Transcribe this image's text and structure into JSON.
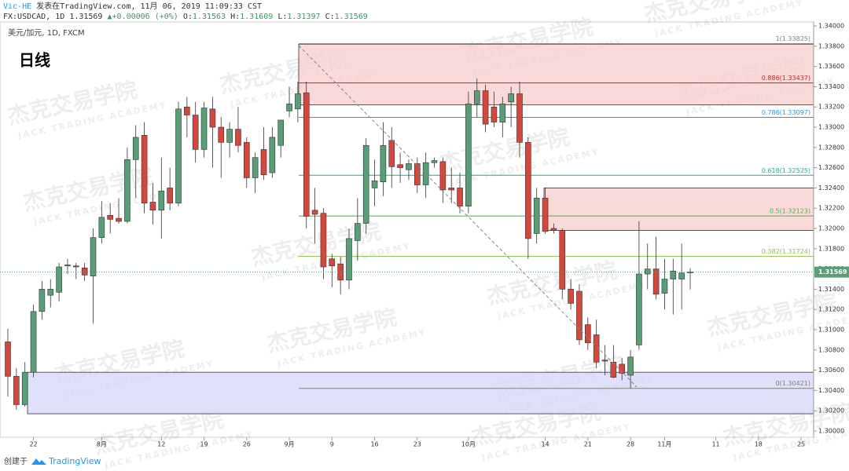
{
  "header": {
    "author": "Vic-HE",
    "published": "发表在TradingView.com, 11月 06, 2019 11:09:33 CST",
    "symbol": "FX:USDCAD, 1D",
    "arrow": "▲",
    "change": "+0.00006 (+0%)",
    "o": "O:",
    "h": "H:",
    "l": "L:",
    "c": "C:"
  },
  "chart_data": {
    "type": "candlestick",
    "instrument": "美元/加元, 1D, FXCM",
    "title": "日线",
    "categories": [
      null,
      null,
      null,
      "22",
      null,
      null,
      null,
      null,
      null,
      null,
      null,
      "8月",
      null,
      null,
      null,
      null,
      null,
      null,
      "12",
      null,
      null,
      null,
      null,
      "19",
      null,
      null,
      null,
      null,
      "26",
      null,
      null,
      null,
      null,
      "9月",
      null,
      null,
      null,
      null,
      "9",
      null,
      null,
      null,
      null,
      "16",
      null,
      null,
      null,
      null,
      "23",
      null,
      null,
      null,
      null,
      null,
      "10月",
      null,
      null,
      null,
      null,
      null,
      null,
      null,
      null,
      "14",
      null,
      null,
      null,
      null,
      "21",
      null,
      null,
      null,
      null,
      "28",
      null,
      null,
      null,
      "11月",
      null,
      null,
      null,
      null,
      null,
      "11",
      null,
      null,
      null,
      null,
      "18",
      null,
      null,
      null,
      null,
      "25"
    ],
    "open": [
      1.3088,
      1.3054,
      1.3026,
      1.3058,
      1.3118,
      1.3134,
      1.3137,
      1.3163,
      1.3163,
      1.3161,
      1.3153,
      1.3191,
      1.3213,
      1.321,
      1.3207,
      1.3268,
      1.3292,
      1.3226,
      1.3218,
      1.324,
      1.3225,
      1.332,
      1.3312,
      1.3278,
      1.3318,
      1.33,
      1.3285,
      1.3298,
      1.3285,
      1.325,
      1.3278,
      1.3255,
      1.3282,
      1.3316,
      1.3318,
      1.3334,
      1.3218,
      1.3215,
      1.317,
      1.3165,
      1.3149,
      1.3188,
      1.3205,
      1.324,
      1.3246,
      1.3287,
      1.3263,
      1.3258,
      1.3264,
      1.3243,
      1.3265,
      1.3266,
      1.324,
      1.324,
      1.3222,
      1.3323,
      1.3336,
      1.332,
      1.3305,
      1.3325,
      1.3333,
      1.3285,
      1.3195,
      1.323,
      1.32,
      1.3198,
      1.314,
      1.3138,
      1.3105,
      1.3095,
      1.307,
      1.3068,
      1.3066,
      1.3055,
      1.3085,
      1.3155,
      1.316,
      1.3136,
      1.315,
      1.315,
      1.31563,
      null,
      null,
      null,
      null,
      null,
      null,
      null,
      null,
      null,
      null,
      null,
      null,
      null
    ],
    "high": [
      1.3101,
      1.3062,
      1.3068,
      1.3125,
      1.3148,
      1.315,
      1.3166,
      1.317,
      1.3166,
      1.3166,
      1.32,
      1.3227,
      1.3225,
      1.323,
      1.328,
      1.3302,
      1.3305,
      1.3245,
      1.327,
      1.326,
      1.3325,
      1.333,
      1.3325,
      1.3325,
      1.333,
      1.331,
      1.3305,
      1.332,
      1.329,
      1.3275,
      1.33,
      1.33,
      1.3305,
      1.334,
      1.3345,
      1.3345,
      1.324,
      1.322,
      1.3175,
      1.3172,
      1.32,
      1.323,
      1.3289,
      1.3268,
      1.3305,
      1.33,
      1.3275,
      1.3268,
      1.327,
      1.3275,
      1.327,
      1.327,
      1.326,
      1.3255,
      1.3335,
      1.3348,
      1.3342,
      1.3335,
      1.333,
      1.334,
      1.3345,
      1.329,
      1.324,
      1.324,
      1.3205,
      1.32,
      1.315,
      1.3145,
      1.3112,
      1.311,
      1.3085,
      1.3085,
      1.3072,
      1.308,
      1.3207,
      1.3185,
      1.3192,
      1.317,
      1.317,
      1.3185,
      1.31609,
      null,
      null,
      null,
      null,
      null,
      null,
      null,
      null,
      null,
      null,
      null,
      null,
      null
    ],
    "low": [
      1.3034,
      1.3021,
      1.3024,
      1.3053,
      1.311,
      1.3122,
      1.3128,
      1.3155,
      1.315,
      1.3148,
      1.3106,
      1.3185,
      1.3195,
      1.3205,
      1.3205,
      1.323,
      1.3215,
      1.3204,
      1.319,
      1.3218,
      1.3222,
      1.329,
      1.3265,
      1.327,
      1.326,
      1.325,
      1.327,
      1.3275,
      1.324,
      1.3235,
      1.3248,
      1.325,
      1.327,
      1.331,
      1.3305,
      1.32,
      1.3185,
      1.315,
      1.3142,
      1.3135,
      1.314,
      1.3168,
      1.3195,
      1.3222,
      1.3232,
      1.324,
      1.3245,
      1.3248,
      1.3235,
      1.323,
      1.326,
      1.3225,
      1.3225,
      1.3215,
      1.3215,
      1.331,
      1.3295,
      1.33,
      1.329,
      1.33,
      1.327,
      1.317,
      1.3185,
      1.3195,
      1.3195,
      1.313,
      1.312,
      1.3085,
      1.308,
      1.3062,
      1.3055,
      1.3052,
      1.305,
      1.3042,
      1.308,
      1.314,
      1.313,
      1.312,
      1.3115,
      1.312,
      1.31397,
      null,
      null,
      null,
      null,
      null,
      null,
      null,
      null,
      null,
      null,
      null,
      null,
      null
    ],
    "close": [
      1.3054,
      1.3026,
      1.3058,
      1.3118,
      1.314,
      1.314,
      1.3162,
      1.3164,
      1.3162,
      1.3154,
      1.3191,
      1.3211,
      1.3209,
      1.3207,
      1.3268,
      1.329,
      1.3225,
      1.3218,
      1.3237,
      1.3225,
      1.3318,
      1.3312,
      1.3278,
      1.3319,
      1.33,
      1.3285,
      1.3298,
      1.3282,
      1.325,
      1.327,
      1.3253,
      1.329,
      1.3307,
      1.3323,
      1.3333,
      1.3212,
      1.3214,
      1.3162,
      1.3163,
      1.3149,
      1.319,
      1.3205,
      1.3282,
      1.3247,
      1.3282,
      1.3261,
      1.326,
      1.3264,
      1.3243,
      1.3265,
      1.3267,
      1.3238,
      1.3238,
      1.3222,
      1.3323,
      1.3336,
      1.3303,
      1.3305,
      1.3323,
      1.3333,
      1.3285,
      1.319,
      1.323,
      1.3197,
      1.3198,
      1.314,
      1.3126,
      1.309,
      1.3087,
      1.3068,
      1.3069,
      1.3053,
      1.3057,
      1.3073,
      1.3155,
      1.316,
      1.3135,
      1.315,
      1.3158,
      1.3156,
      1.31569,
      null,
      null,
      null,
      null,
      null,
      null,
      null,
      null,
      null,
      null,
      null,
      null,
      null
    ],
    "up_color": "#5a9e78",
    "down_color": "#d2483f",
    "ylim": [
      1.29938,
      1.34039
    ],
    "yticks": [
      {
        "value": 1.3,
        "label": "1.30000"
      },
      {
        "value": 1.302,
        "label": "1.30200"
      },
      {
        "value": 1.304,
        "label": "1.30400"
      },
      {
        "value": 1.306,
        "label": "1.30600"
      },
      {
        "value": 1.308,
        "label": "1.30800"
      },
      {
        "value": 1.31,
        "label": "1.31000"
      },
      {
        "value": 1.312,
        "label": "1.31200"
      },
      {
        "value": 1.314,
        "label": "1.31400"
      },
      {
        "value": 1.316,
        "label": "1.31600"
      },
      {
        "value": 1.318,
        "label": "1.31800"
      },
      {
        "value": 1.32,
        "label": "1.32000"
      },
      {
        "value": 1.322,
        "label": "1.32200"
      },
      {
        "value": 1.324,
        "label": "1.32400"
      },
      {
        "value": 1.326,
        "label": "1.32600"
      },
      {
        "value": 1.328,
        "label": "1.32800"
      },
      {
        "value": 1.33,
        "label": "1.33000"
      },
      {
        "value": 1.332,
        "label": "1.33200"
      },
      {
        "value": 1.334,
        "label": "1.33400"
      },
      {
        "value": 1.336,
        "label": "1.33600"
      },
      {
        "value": 1.338,
        "label": "1.33800"
      },
      {
        "value": 1.34,
        "label": "1.34000"
      }
    ],
    "zones": [
      {
        "low": 1.3322,
        "high": 1.3382,
        "color": "#f8cccc"
      },
      {
        "low": 1.3198,
        "high": 1.324,
        "color": "#f8cccc"
      },
      {
        "low": 1.3017,
        "high": 1.3058,
        "color": "#d6d6f8"
      }
    ],
    "fib_levels": [
      {
        "value": 1.33825,
        "label": "1(1.33825)",
        "color": "#808080"
      },
      {
        "value": 1.33437,
        "label": "0.886(1.33437)",
        "color": "#c62828"
      },
      {
        "value": 1.33097,
        "label": "0.786(1.33097)",
        "color": "#2196f3"
      },
      {
        "value": 1.32525,
        "label": "0.618(1.32525)",
        "color": "#26a69a"
      },
      {
        "value": 1.32123,
        "label": "0.5(1.32123)",
        "color": "#4caf50"
      },
      {
        "value": 1.31724,
        "label": "0.382(1.31724)",
        "color": "#8bc34a"
      },
      {
        "value": 1.30421,
        "label": "0(1.30421)",
        "color": "#808080"
      }
    ],
    "watermark": {
      "cn": "杰克交易学院",
      "en": "JACK TRADING ACADEMY"
    }
  },
  "footer": {
    "created": "创建于",
    "brand": "TradingView"
  }
}
